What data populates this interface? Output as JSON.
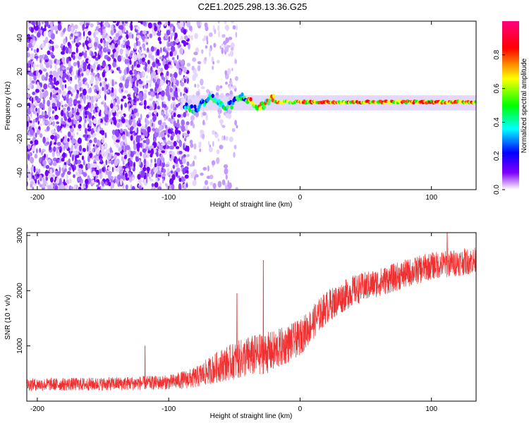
{
  "title": "C2E1.2025.298.13.36.G25",
  "chart_data": [
    {
      "type": "heatmap",
      "xlabel": "Height of straight line (km)",
      "ylabel": "Frequency (Hz)",
      "xlim": [
        -208,
        134
      ],
      "ylim": [
        -50,
        50
      ],
      "xticks": [
        -200,
        -100,
        0,
        100
      ],
      "yticks": [
        -40,
        -20,
        0,
        20,
        40
      ],
      "colorbar": {
        "label": "Normalized spectral amplitude",
        "range": [
          0,
          1
        ],
        "ticks": [
          "0.0",
          "0.2",
          "0.4",
          "0.6",
          "0.8"
        ],
        "tick_values": [
          0.0,
          0.2,
          0.4,
          0.6,
          0.8
        ]
      },
      "description_of_field": {
        "noise_region_km": [
          -208,
          -85
        ],
        "sparse_noise_region_km": [
          -85,
          -48
        ],
        "signal_ridge_frequency_hz": 2,
        "signal_start_km": -88
      }
    },
    {
      "type": "line",
      "xlabel": "Height of straight line (km)",
      "ylabel": "SNR (10 * v/v)",
      "xlim": [
        -208,
        134
      ],
      "ylim": [
        0,
        3050
      ],
      "xticks": [
        -200,
        -100,
        0,
        100
      ],
      "yticks": [
        1000,
        2000,
        3000
      ],
      "color": "#f03030",
      "trend": [
        {
          "x": -208,
          "mean": 300,
          "spread": 230
        },
        {
          "x": -150,
          "mean": 310,
          "spread": 240
        },
        {
          "x": -100,
          "mean": 340,
          "spread": 260
        },
        {
          "x": -80,
          "mean": 420,
          "spread": 380
        },
        {
          "x": -60,
          "mean": 650,
          "spread": 600
        },
        {
          "x": -40,
          "mean": 800,
          "spread": 750
        },
        {
          "x": -20,
          "mean": 900,
          "spread": 750
        },
        {
          "x": 0,
          "mean": 1150,
          "spread": 650
        },
        {
          "x": 20,
          "mean": 1700,
          "spread": 600
        },
        {
          "x": 40,
          "mean": 2000,
          "spread": 550
        },
        {
          "x": 60,
          "mean": 2150,
          "spread": 520
        },
        {
          "x": 80,
          "mean": 2300,
          "spread": 520
        },
        {
          "x": 100,
          "mean": 2450,
          "spread": 500
        },
        {
          "x": 134,
          "mean": 2550,
          "spread": 480
        }
      ],
      "spikes": [
        {
          "x": -118,
          "y": 1000
        },
        {
          "x": -28,
          "y": 2550
        },
        {
          "x": -48,
          "y": 1950
        },
        {
          "x": 112,
          "y": 3050
        }
      ]
    }
  ]
}
